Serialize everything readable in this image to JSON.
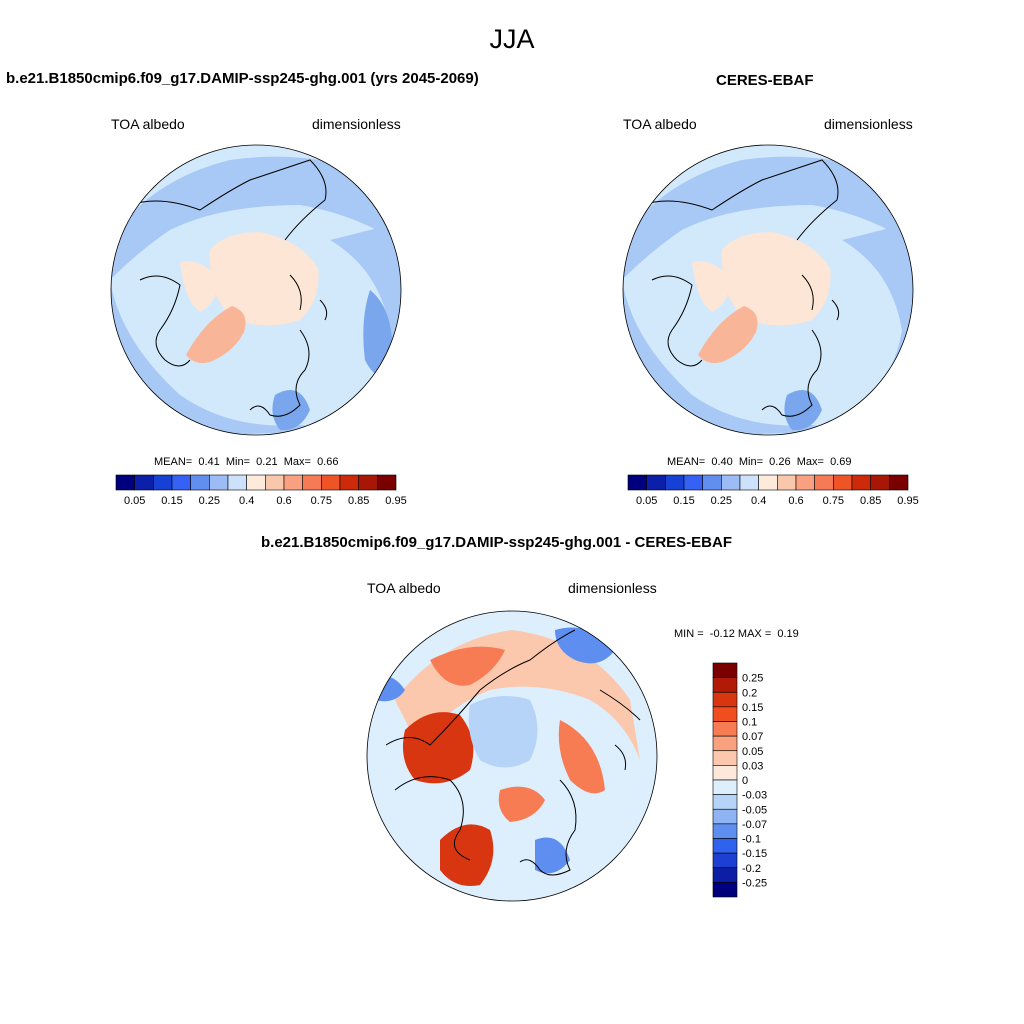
{
  "season": "JJA",
  "colors": {
    "ocean_light": "#d2e8fb",
    "ocean_mid": "#a8c8f5",
    "ocean_deep": "#7aa6ee",
    "ice": "#fde6d6",
    "greenland": "#f8b597",
    "coast": "#000000"
  },
  "chart_data": [
    {
      "type": "heatmap",
      "projection": "polar-stereographic-north",
      "title": "b.e21.B1850cmip6.f09_g17.DAMIP-ssp245-ghg.001 (yrs 2045-2069)",
      "variable": "TOA albedo",
      "units": "dimensionless",
      "stats": {
        "mean_label": "MEAN=",
        "mean": "0.41",
        "min_label": "Min=",
        "min": "0.21",
        "max_label": "Max=",
        "max": "0.66"
      },
      "colorbar": {
        "orientation": "horizontal",
        "tick_labels": [
          "0.05",
          "0.15",
          "0.25",
          "0.4",
          "0.6",
          "0.75",
          "0.85",
          "0.95"
        ],
        "colors": [
          "#00007f",
          "#0b1fa8",
          "#1740d4",
          "#3562f4",
          "#628ef0",
          "#9dbcf5",
          "#cde2fa",
          "#fdeadb",
          "#f9c7ab",
          "#f8a07f",
          "#f57a55",
          "#ee5426",
          "#cc2a0a",
          "#a81606",
          "#7a0000"
        ]
      }
    },
    {
      "type": "heatmap",
      "projection": "polar-stereographic-north",
      "title": "CERES-EBAF",
      "variable": "TOA albedo",
      "units": "dimensionless",
      "stats": {
        "mean_label": "MEAN=",
        "mean": "0.40",
        "min_label": "Min=",
        "min": "0.26",
        "max_label": "Max=",
        "max": "0.69"
      },
      "colorbar": {
        "orientation": "horizontal",
        "tick_labels": [
          "0.05",
          "0.15",
          "0.25",
          "0.4",
          "0.6",
          "0.75",
          "0.85",
          "0.95"
        ],
        "colors": [
          "#00007f",
          "#0b1fa8",
          "#1740d4",
          "#3562f4",
          "#628ef0",
          "#9dbcf5",
          "#cde2fa",
          "#fdeadb",
          "#f9c7ab",
          "#f8a07f",
          "#f57a55",
          "#ee5426",
          "#cc2a0a",
          "#a81606",
          "#7a0000"
        ]
      }
    },
    {
      "type": "heatmap",
      "projection": "polar-stereographic-north",
      "title": "b.e21.B1850cmip6.f09_g17.DAMIP-ssp245-ghg.001 - CERES-EBAF",
      "variable": "TOA albedo",
      "units": "dimensionless",
      "stats": {
        "min_label": "MIN =",
        "min": "-0.12",
        "max_label": "MAX =",
        "max": "0.19"
      },
      "colorbar": {
        "orientation": "vertical",
        "tick_labels": [
          "0.25",
          "0.2",
          "0.15",
          "0.1",
          "0.07",
          "0.05",
          "0.03",
          "0",
          "-0.03",
          "-0.05",
          "-0.07",
          "-0.1",
          "-0.15",
          "-0.2",
          "-0.25"
        ],
        "colors": [
          "#7a0000",
          "#b01a06",
          "#d83610",
          "#f04e1e",
          "#f77c53",
          "#f9a07e",
          "#fbc7ad",
          "#fde9dc",
          "#ddeefc",
          "#b6d3f8",
          "#8fb4f3",
          "#5e8ff0",
          "#2f62ee",
          "#1d3fd2",
          "#0c1fa4",
          "#00007f"
        ]
      }
    }
  ]
}
